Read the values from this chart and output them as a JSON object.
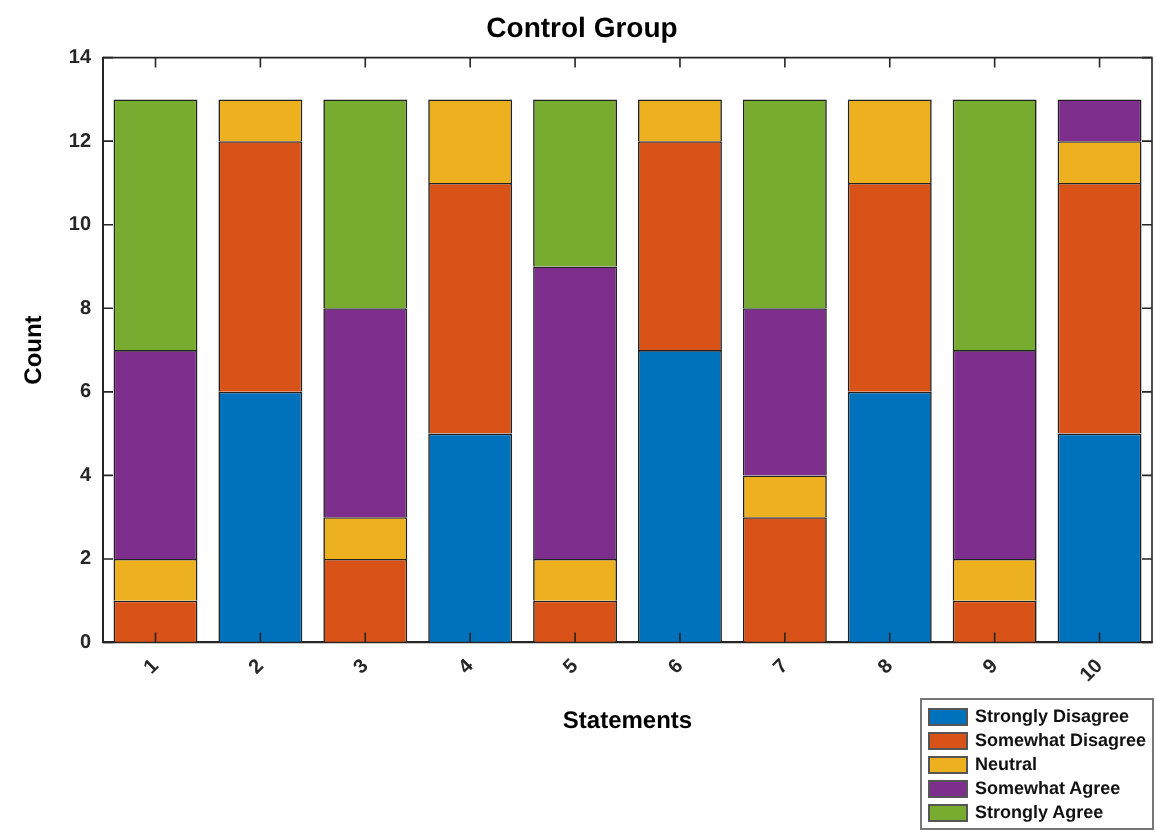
{
  "chart_data": {
    "type": "bar",
    "title": "Control Group",
    "xlabel": "Statements",
    "ylabel": "Count",
    "categories": [
      "1",
      "2",
      "3",
      "4",
      "5",
      "6",
      "7",
      "8",
      "9",
      "10"
    ],
    "stacked": true,
    "series": [
      {
        "name": "Strongly Disagree",
        "color": "#0072bd",
        "values": [
          0,
          6,
          0,
          5,
          0,
          7,
          0,
          6,
          0,
          5
        ]
      },
      {
        "name": "Somewhat Disagree",
        "color": "#d95319",
        "values": [
          1,
          6,
          2,
          6,
          1,
          5,
          3,
          5,
          1,
          6
        ]
      },
      {
        "name": "Neutral",
        "color": "#edb120",
        "values": [
          1,
          1,
          1,
          2,
          1,
          1,
          1,
          2,
          1,
          1
        ]
      },
      {
        "name": "Somewhat Agree",
        "color": "#7e2f8e",
        "values": [
          5,
          0,
          5,
          0,
          7,
          0,
          4,
          0,
          5,
          1
        ]
      },
      {
        "name": "Strongly Agree",
        "color": "#77ac30",
        "values": [
          6,
          0,
          5,
          0,
          4,
          0,
          5,
          0,
          6,
          0
        ]
      }
    ],
    "ylim": [
      0,
      14
    ],
    "yticks": [
      0,
      2,
      4,
      6,
      8,
      10,
      12,
      14
    ],
    "grid": false,
    "legend": "bottom right"
  }
}
